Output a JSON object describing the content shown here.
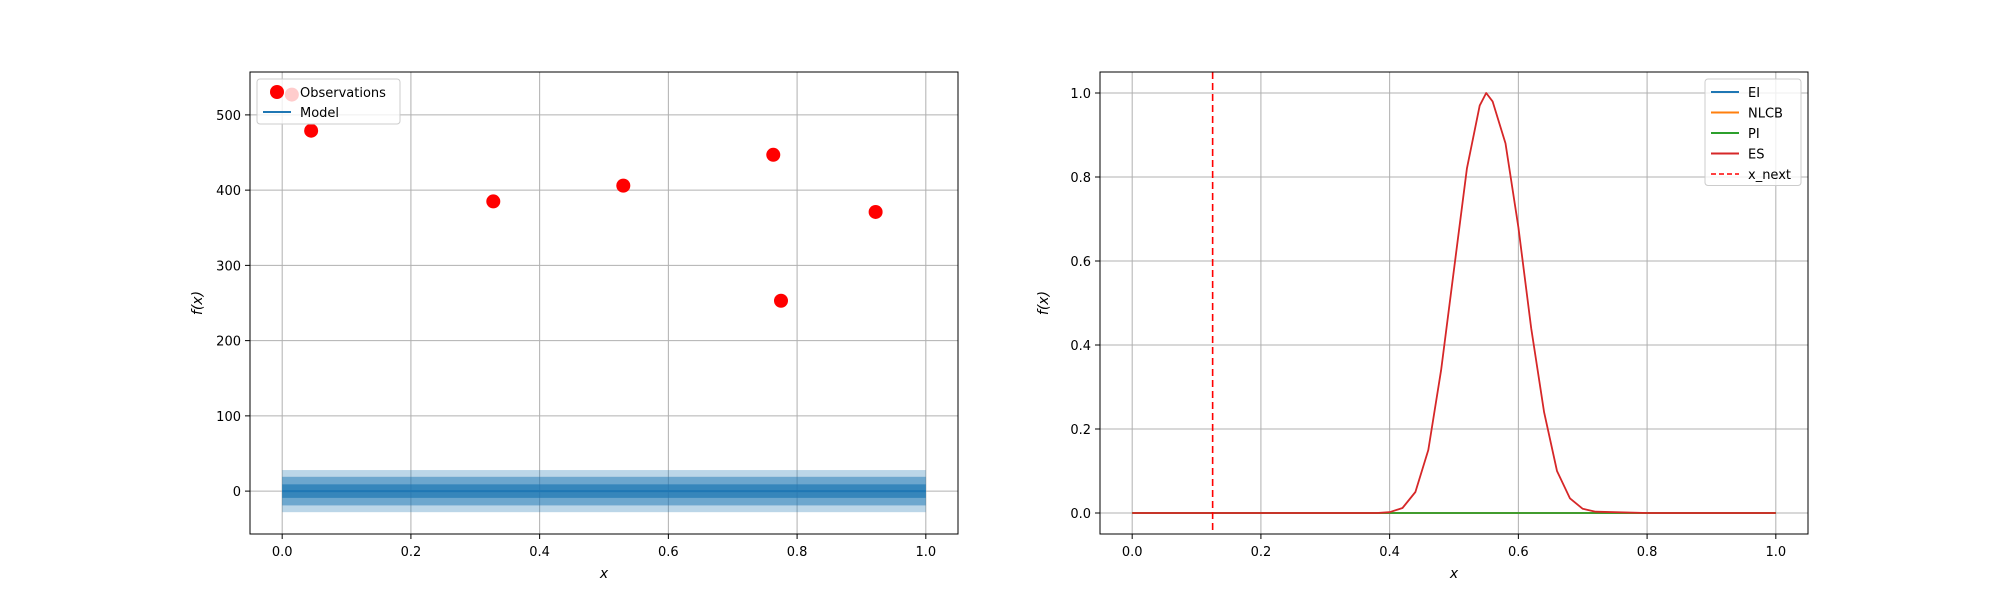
{
  "chart_data": [
    {
      "type": "scatter",
      "xlabel": "x",
      "ylabel": "f(x)",
      "xlim": [
        -0.05,
        1.05
      ],
      "ylim": [
        -57,
        557
      ],
      "xticks": [
        0.0,
        0.2,
        0.4,
        0.6,
        0.8,
        1.0
      ],
      "xtick_labels": [
        "0.0",
        "0.2",
        "0.4",
        "0.6",
        "0.8",
        "1.0"
      ],
      "yticks": [
        0,
        100,
        200,
        300,
        400,
        500
      ],
      "ytick_labels": [
        "0",
        "100",
        "200",
        "300",
        "400",
        "500"
      ],
      "grid": true,
      "legend": {
        "placement": "upper-left",
        "entries": [
          "Observations",
          "Model"
        ]
      },
      "observations": {
        "name": "Observations",
        "color": "#ff0000",
        "x": [
          0.015,
          0.045,
          0.328,
          0.53,
          0.763,
          0.775,
          0.922
        ],
        "y": [
          527,
          479,
          385,
          406,
          447,
          253,
          371
        ]
      },
      "model": {
        "name": "Model",
        "color": "#1f77b4",
        "x": [
          0.0,
          1.0
        ],
        "mean": 0,
        "bands": [
          {
            "half_width": 28,
            "opacity": 0.3
          },
          {
            "half_width": 19,
            "opacity": 0.5
          },
          {
            "half_width": 9,
            "opacity": 0.7
          }
        ]
      }
    },
    {
      "type": "line",
      "xlabel": "x",
      "ylabel": "f(x)",
      "xlim": [
        -0.05,
        1.05
      ],
      "ylim": [
        -0.05,
        1.05
      ],
      "xticks": [
        0.0,
        0.2,
        0.4,
        0.6,
        0.8,
        1.0
      ],
      "xtick_labels": [
        "0.0",
        "0.2",
        "0.4",
        "0.6",
        "0.8",
        "1.0"
      ],
      "yticks": [
        0.0,
        0.2,
        0.4,
        0.6,
        0.8,
        1.0
      ],
      "ytick_labels": [
        "0.0",
        "0.2",
        "0.4",
        "0.6",
        "0.8",
        "1.0"
      ],
      "grid": true,
      "legend": {
        "placement": "upper-right",
        "entries": [
          "EI",
          "NLCB",
          "PI",
          "ES",
          "x_next"
        ]
      },
      "series": [
        {
          "name": "EI",
          "color": "#1f77b4",
          "x": [
            0,
            1
          ],
          "y": [
            0,
            0
          ]
        },
        {
          "name": "NLCB",
          "color": "#ff7f0e",
          "x": [
            0,
            1
          ],
          "y": [
            0,
            0
          ]
        },
        {
          "name": "PI",
          "color": "#2ca02c",
          "x": [
            0,
            1
          ],
          "y": [
            0,
            0
          ]
        },
        {
          "name": "ES",
          "color": "#d62728",
          "x": [
            0.0,
            0.1,
            0.2,
            0.3,
            0.38,
            0.4,
            0.42,
            0.44,
            0.46,
            0.48,
            0.5,
            0.52,
            0.54,
            0.55,
            0.56,
            0.58,
            0.6,
            0.62,
            0.64,
            0.66,
            0.68,
            0.7,
            0.72,
            0.8,
            0.9,
            1.0
          ],
          "y": [
            0.0,
            0.0,
            0.0,
            0.0,
            0.0,
            0.002,
            0.012,
            0.05,
            0.15,
            0.34,
            0.58,
            0.82,
            0.97,
            1.0,
            0.98,
            0.88,
            0.68,
            0.44,
            0.24,
            0.1,
            0.035,
            0.01,
            0.003,
            0.0,
            0.0,
            0.0
          ]
        }
      ],
      "vline": {
        "name": "x_next",
        "color": "#ff0000",
        "x": 0.125
      }
    }
  ]
}
